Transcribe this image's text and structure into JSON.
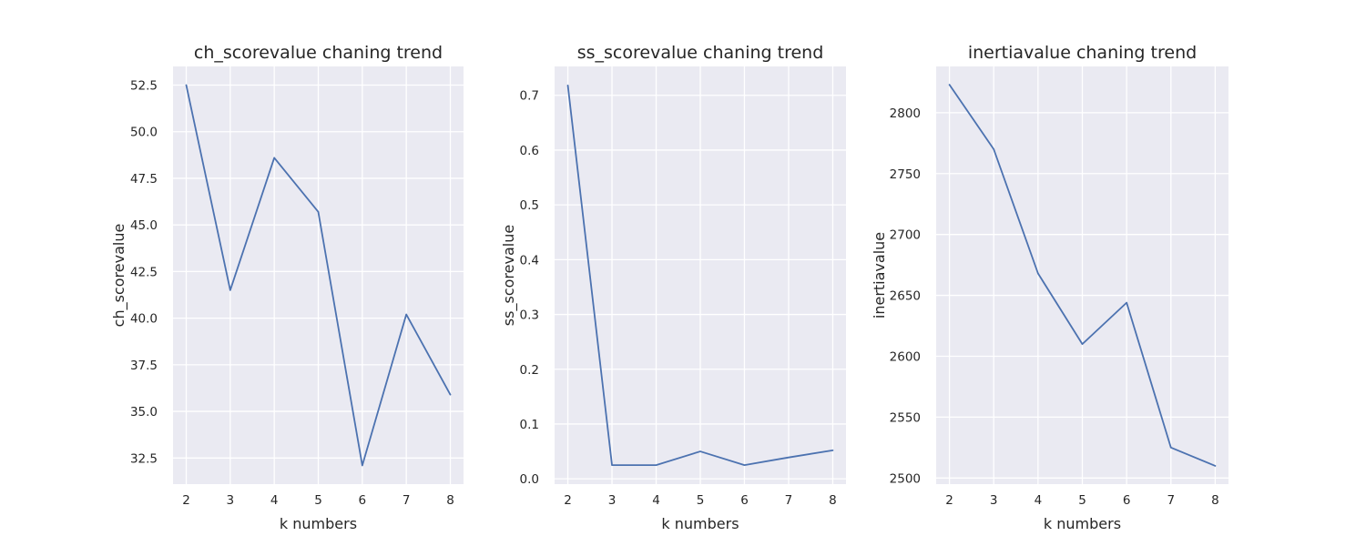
{
  "chart_data": [
    {
      "type": "line",
      "title": "ch_scorevalue chaning trend",
      "xlabel": "k numbers",
      "ylabel": "ch_scorevalue",
      "x": [
        2,
        3,
        4,
        5,
        6,
        7,
        8
      ],
      "values": [
        52.5,
        41.5,
        48.6,
        45.7,
        32.1,
        40.2,
        35.9
      ],
      "xlim": [
        1.7,
        8.3
      ],
      "ylim": [
        31.1,
        53.5
      ],
      "xticks": [
        2,
        3,
        4,
        5,
        6,
        7,
        8
      ],
      "yticks": [
        32.5,
        35.0,
        37.5,
        40.0,
        42.5,
        45.0,
        47.5,
        50.0,
        52.5
      ],
      "yticklabels": [
        "32.5",
        "35.0",
        "37.5",
        "40.0",
        "42.5",
        "45.0",
        "47.5",
        "50.0",
        "52.5"
      ],
      "grid": true,
      "color": "#4c72b0"
    },
    {
      "type": "line",
      "title": "ss_scorevalue chaning trend",
      "xlabel": "k numbers",
      "ylabel": "ss_scorevalue",
      "x": [
        2,
        3,
        4,
        5,
        6,
        7,
        8
      ],
      "values": [
        0.718,
        0.025,
        0.025,
        0.05,
        0.025,
        0.039,
        0.052
      ],
      "xlim": [
        1.7,
        8.3
      ],
      "ylim": [
        -0.0097,
        0.7527
      ],
      "xticks": [
        2,
        3,
        4,
        5,
        6,
        7,
        8
      ],
      "yticks": [
        0.0,
        0.1,
        0.2,
        0.3,
        0.4,
        0.5,
        0.6,
        0.7
      ],
      "yticklabels": [
        "0.0",
        "0.1",
        "0.2",
        "0.3",
        "0.4",
        "0.5",
        "0.6",
        "0.7"
      ],
      "grid": true,
      "color": "#4c72b0"
    },
    {
      "type": "line",
      "title": "inertiavalue chaning trend",
      "xlabel": "k numbers",
      "ylabel": "inertiavalue",
      "x": [
        2,
        3,
        4,
        5,
        6,
        7,
        8
      ],
      "values": [
        2823,
        2770,
        2668,
        2610,
        2644,
        2525,
        2510
      ],
      "xlim": [
        1.7,
        8.3
      ],
      "ylim": [
        2495,
        2838
      ],
      "xticks": [
        2,
        3,
        4,
        5,
        6,
        7,
        8
      ],
      "yticks": [
        2500,
        2550,
        2600,
        2650,
        2700,
        2750,
        2800
      ],
      "yticklabels": [
        "2500",
        "2550",
        "2600",
        "2650",
        "2700",
        "2750",
        "2800"
      ],
      "grid": true,
      "color": "#4c72b0"
    }
  ]
}
